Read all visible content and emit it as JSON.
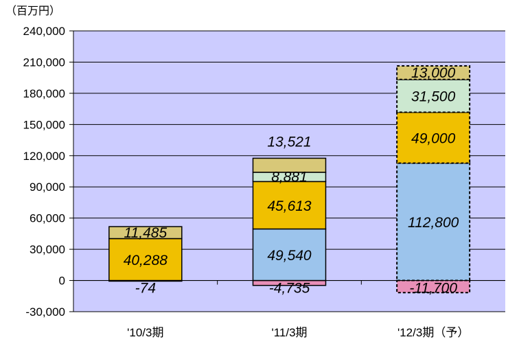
{
  "chart_data": {
    "type": "bar",
    "stacked": true,
    "unit_label": "（百万円）",
    "categories": [
      "'10/3期",
      "'11/3期",
      "'12/3期（予）"
    ],
    "ylim": [
      -30000,
      240000
    ],
    "yticks": [
      -30000,
      0,
      30000,
      60000,
      90000,
      120000,
      150000,
      180000,
      210000,
      240000
    ],
    "ytick_labels": [
      "-30,000",
      "0",
      "30,000",
      "60,000",
      "90,000",
      "120,000",
      "150,000",
      "180,000",
      "210,000",
      "240,000"
    ],
    "grid": true,
    "legend": "none",
    "series": [
      {
        "color": "#e890b8",
        "values": [
          -74,
          -4735,
          -11700
        ],
        "labels": [
          "-74",
          "-4,735",
          "-11,700"
        ]
      },
      {
        "color": "#9cc4ec",
        "values": [
          0,
          49540,
          112800
        ],
        "labels": [
          "",
          "49,540",
          "112,800"
        ]
      },
      {
        "color": "#f0c000",
        "values": [
          40288,
          45613,
          49000
        ],
        "labels": [
          "40,288",
          "45,613",
          "49,000"
        ]
      },
      {
        "color": "#cce8d0",
        "values": [
          0,
          8881,
          31500
        ],
        "labels": [
          "",
          "8,881",
          "31,500"
        ]
      },
      {
        "color": "#d8c878",
        "values": [
          11485,
          13521,
          13000
        ],
        "labels": [
          "11,485",
          "13,521",
          "13,000"
        ]
      }
    ],
    "forecast_category_index": 2,
    "colors": {
      "plot_background": "#ccccff",
      "axis": "#000000",
      "gridline": "#000000",
      "label_text": "#000000"
    }
  }
}
